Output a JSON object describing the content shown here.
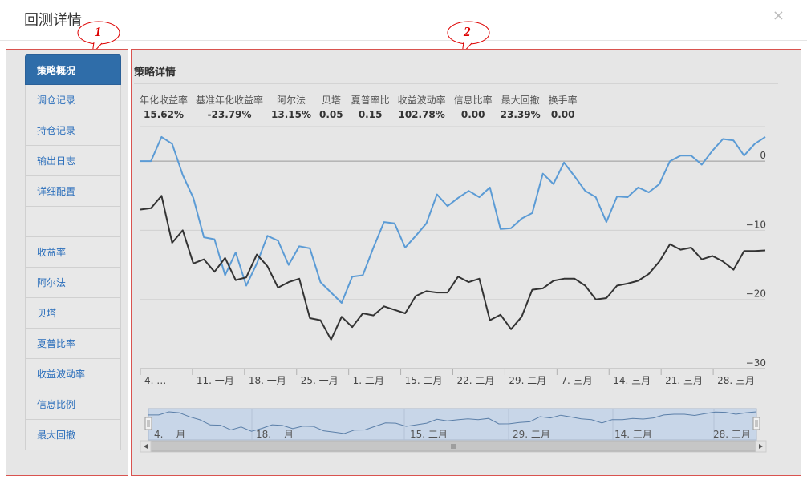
{
  "dialog": {
    "title": "回测详情",
    "close_label": "×"
  },
  "callouts": [
    "1",
    "2"
  ],
  "sidebar": {
    "items": [
      {
        "label": "策略概况",
        "active": true
      },
      {
        "label": "调仓记录"
      },
      {
        "label": "持仓记录"
      },
      {
        "label": "输出日志"
      },
      {
        "label": "详细配置"
      },
      {
        "label": ""
      },
      {
        "label": "收益率"
      },
      {
        "label": "阿尔法"
      },
      {
        "label": "贝塔"
      },
      {
        "label": "夏普比率"
      },
      {
        "label": "收益波动率"
      },
      {
        "label": "信息比例"
      },
      {
        "label": "最大回撤"
      }
    ]
  },
  "main": {
    "title": "策略详情",
    "stats": [
      {
        "label": "年化收益率",
        "value": "15.62%"
      },
      {
        "label": "基准年化收益率",
        "value": "-23.79%"
      },
      {
        "label": "阿尔法",
        "value": "13.15%"
      },
      {
        "label": "贝塔",
        "value": "0.05"
      },
      {
        "label": "夏普率比",
        "value": "0.15"
      },
      {
        "label": "收益波动率",
        "value": "102.78%"
      },
      {
        "label": "信息比率",
        "value": "0.00"
      },
      {
        "label": "最大回撤",
        "value": "23.39%"
      },
      {
        "label": "换手率",
        "value": "0.00"
      }
    ]
  },
  "chart_data": {
    "type": "line",
    "y_ticks": [
      "0",
      "−10",
      "−20",
      "−30"
    ],
    "ylim": [
      -30,
      5
    ],
    "x_ticks": [
      "4. …",
      "11. 一月",
      "18. 一月",
      "25. 一月",
      "1. 二月",
      "15. 二月",
      "22. 二月",
      "29. 二月",
      "7. 三月",
      "14. 三月",
      "21. 三月",
      "28. 三月"
    ],
    "series": [
      {
        "color": "#5b9bd5",
        "values": [
          0,
          0,
          3.5,
          2.5,
          -2,
          -5.3,
          -11,
          -11.3,
          -16.5,
          -13.2,
          -18,
          -14.8,
          -10.8,
          -11.5,
          -15,
          -12.3,
          -12.6,
          -17.5,
          -19,
          -20.5,
          -16.7,
          -16.5,
          -12.5,
          -8.8,
          -9,
          -12.5,
          -10.8,
          -9,
          -4.8,
          -6.5,
          -5.3,
          -4.3,
          -5.2,
          -3.8,
          -9.8,
          -9.7,
          -8.3,
          -7.5,
          -1.8,
          -3.3,
          -0.2,
          -2.2,
          -4.3,
          -5.2,
          -8.8,
          -5.1,
          -5.2,
          -3.8,
          -4.5,
          -3.3,
          0,
          0.8,
          0.8,
          -0.5,
          1.5,
          3.2,
          3,
          0.8,
          2.5,
          3.5
        ]
      },
      {
        "color": "#333333",
        "values": [
          -7,
          -6.8,
          -5,
          -11.8,
          -10,
          -14.8,
          -14.2,
          -16,
          -14,
          -17.2,
          -16.8,
          -13.5,
          -15.2,
          -18.3,
          -17.5,
          -17,
          -22.7,
          -23,
          -25.8,
          -22.5,
          -24,
          -22,
          -22.3,
          -21,
          -21.5,
          -22,
          -19.5,
          -18.8,
          -19,
          -19,
          -16.7,
          -17.5,
          -17,
          -23,
          -22.2,
          -24.3,
          -22.5,
          -18.6,
          -18.4,
          -17.3,
          -17,
          -17,
          -18,
          -20,
          -19.8,
          -18,
          -17.7,
          -17.3,
          -16.3,
          -14.5,
          -12,
          -12.8,
          -12.5,
          -14.2,
          -13.7,
          -14.5,
          -15.7,
          -13,
          -13,
          -12.9
        ]
      }
    ],
    "navigator": {
      "labels": [
        "4. 一月",
        "18. 一月",
        "15. 二月",
        "29. 二月",
        "14. 三月",
        "28. 三月"
      ]
    }
  }
}
